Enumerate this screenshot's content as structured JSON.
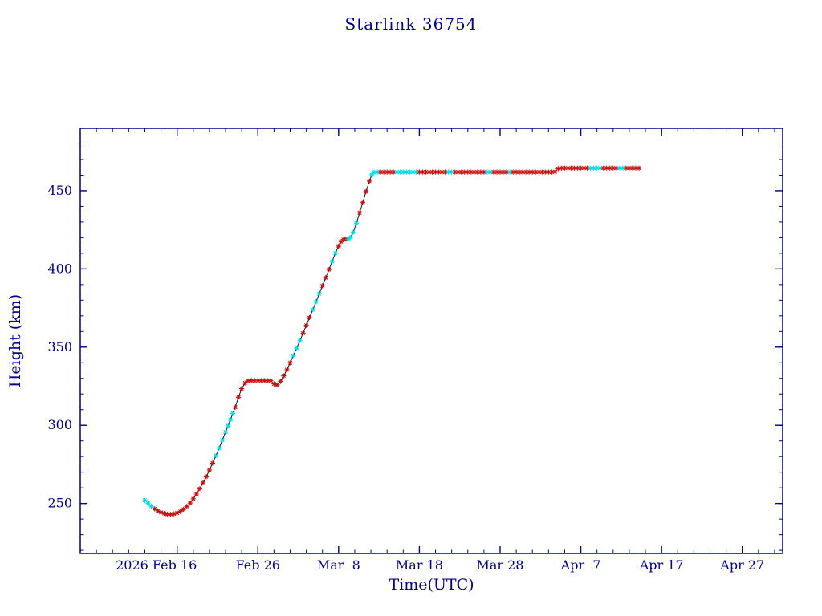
{
  "chart_data": {
    "type": "scatter",
    "title": "Starlink 36754",
    "xlabel": "Time(UTC)",
    "ylabel": "Height (km)",
    "x_axis_unit": "days since 2026 Feb 4",
    "x_domain": [
      0,
      87
    ],
    "y_domain": [
      218,
      490
    ],
    "x_ticks": [
      {
        "day": 12,
        "label": "2026 Feb 16",
        "dx": -26
      },
      {
        "day": 22,
        "label": "Feb 26",
        "dx": 0
      },
      {
        "day": 32,
        "label": "Mar  8",
        "dx": 0
      },
      {
        "day": 42,
        "label": "Mar 18",
        "dx": 0
      },
      {
        "day": 52,
        "label": "Mar 28",
        "dx": 0
      },
      {
        "day": 62,
        "label": "Apr  7",
        "dx": 0
      },
      {
        "day": 72,
        "label": "Apr 17",
        "dx": 0
      },
      {
        "day": 82,
        "label": "Apr 27",
        "dx": 0
      }
    ],
    "y_ticks": [
      250,
      300,
      350,
      400,
      450
    ],
    "x_minor_step": 2,
    "y_minor_step": 10,
    "grid": false,
    "legend": "none",
    "colors": {
      "axis": "#00008b",
      "line": "#10102a",
      "red_marker": "#cc1111",
      "cyan_marker": "#00dde8",
      "background": "#ffffff"
    },
    "points_format": [
      "day_offset",
      "height_km",
      "color_key r=red c=cyan"
    ],
    "points": [
      [
        8,
        252,
        "c"
      ],
      [
        8.4,
        250,
        "c"
      ],
      [
        8.8,
        248.2,
        "c"
      ],
      [
        9.2,
        246.6,
        "r"
      ],
      [
        9.6,
        245.3,
        "r"
      ],
      [
        10,
        244.3,
        "r"
      ],
      [
        10.4,
        243.6,
        "r"
      ],
      [
        10.8,
        243.1,
        "r"
      ],
      [
        11.2,
        243,
        "r"
      ],
      [
        11.6,
        243.3,
        "r"
      ],
      [
        12,
        243.9,
        "r"
      ],
      [
        12.4,
        244.9,
        "r"
      ],
      [
        12.8,
        246.3,
        "r"
      ],
      [
        13.2,
        248.1,
        "r"
      ],
      [
        13.6,
        250.3,
        "r"
      ],
      [
        14,
        253,
        "r"
      ],
      [
        14.4,
        256,
        "r"
      ],
      [
        14.8,
        259.4,
        "r"
      ],
      [
        15.2,
        263.1,
        "r"
      ],
      [
        15.6,
        267.1,
        "r"
      ],
      [
        16,
        271.3,
        "r"
      ],
      [
        16.4,
        275.8,
        "r"
      ],
      [
        16.8,
        280.5,
        "c"
      ],
      [
        17.2,
        285.4,
        "c"
      ],
      [
        17.6,
        290.5,
        "c"
      ],
      [
        18,
        295.7,
        "c"
      ],
      [
        18.3,
        299.6,
        "c"
      ],
      [
        18.6,
        303.6,
        "c"
      ],
      [
        18.9,
        307.6,
        "c"
      ],
      [
        19.2,
        311.6,
        "r"
      ],
      [
        19.6,
        317.9,
        "r"
      ],
      [
        20,
        323.4,
        "r"
      ],
      [
        20.4,
        327,
        "r"
      ],
      [
        20.8,
        328.4,
        "r"
      ],
      [
        21.2,
        328.6,
        "r"
      ],
      [
        21.6,
        328.6,
        "r"
      ],
      [
        22,
        328.6,
        "r"
      ],
      [
        22.4,
        328.6,
        "r"
      ],
      [
        22.8,
        328.6,
        "r"
      ],
      [
        23.2,
        328.6,
        "r"
      ],
      [
        23.6,
        328.5,
        "r"
      ],
      [
        24,
        326.5,
        "r"
      ],
      [
        24.4,
        325.8,
        "r"
      ],
      [
        24.8,
        328.1,
        "r"
      ],
      [
        25.2,
        331.6,
        "r"
      ],
      [
        25.6,
        335.6,
        "r"
      ],
      [
        26,
        340,
        "r"
      ],
      [
        26.4,
        344.6,
        "c"
      ],
      [
        26.8,
        349.3,
        "c"
      ],
      [
        27.2,
        354.1,
        "c"
      ],
      [
        27.6,
        359,
        "r"
      ],
      [
        28,
        363.9,
        "r"
      ],
      [
        28.4,
        368.9,
        "r"
      ],
      [
        28.8,
        373.9,
        "c"
      ],
      [
        29.2,
        379,
        "c"
      ],
      [
        29.6,
        384.1,
        "c"
      ],
      [
        30,
        389.2,
        "r"
      ],
      [
        30.4,
        394.4,
        "r"
      ],
      [
        30.8,
        399.6,
        "r"
      ],
      [
        31.2,
        404.8,
        "c"
      ],
      [
        31.6,
        410.1,
        "c"
      ],
      [
        32,
        414.6,
        "r"
      ],
      [
        32.3,
        417.5,
        "r"
      ],
      [
        32.6,
        418.8,
        "r"
      ],
      [
        32.9,
        419,
        "r"
      ],
      [
        33.2,
        419.1,
        "c"
      ],
      [
        33.5,
        420.3,
        "c"
      ],
      [
        33.8,
        423.4,
        "c"
      ],
      [
        34.2,
        429.3,
        "c"
      ],
      [
        34.6,
        435.9,
        "r"
      ],
      [
        35,
        442.7,
        "r"
      ],
      [
        35.4,
        449.5,
        "r"
      ],
      [
        35.8,
        456.2,
        "r"
      ],
      [
        36.1,
        460.2,
        "c"
      ],
      [
        36.4,
        461.8,
        "c"
      ],
      [
        36.8,
        462,
        "c"
      ],
      [
        37.2,
        462,
        "r"
      ],
      [
        37.6,
        462,
        "r"
      ],
      [
        38,
        462,
        "r"
      ],
      [
        38.4,
        462,
        "r"
      ],
      [
        38.8,
        462,
        "r"
      ],
      [
        39.2,
        462,
        "c"
      ],
      [
        39.6,
        462,
        "c"
      ],
      [
        40,
        462,
        "c"
      ],
      [
        40.4,
        462,
        "c"
      ],
      [
        40.8,
        462,
        "c"
      ],
      [
        41.2,
        462,
        "c"
      ],
      [
        41.6,
        462,
        "c"
      ],
      [
        42,
        462,
        "r"
      ],
      [
        42.4,
        462,
        "r"
      ],
      [
        42.8,
        462,
        "r"
      ],
      [
        43.2,
        462,
        "r"
      ],
      [
        43.6,
        462,
        "r"
      ],
      [
        44,
        462,
        "r"
      ],
      [
        44.4,
        462,
        "r"
      ],
      [
        44.8,
        462,
        "r"
      ],
      [
        45.2,
        462,
        "r"
      ],
      [
        45.6,
        462,
        "c"
      ],
      [
        46,
        462,
        "c"
      ],
      [
        46.4,
        462,
        "r"
      ],
      [
        46.8,
        462,
        "r"
      ],
      [
        47.2,
        462,
        "r"
      ],
      [
        47.6,
        462,
        "r"
      ],
      [
        48,
        462,
        "r"
      ],
      [
        48.4,
        462,
        "r"
      ],
      [
        48.8,
        462,
        "r"
      ],
      [
        49.2,
        462,
        "r"
      ],
      [
        49.6,
        462,
        "r"
      ],
      [
        50,
        462,
        "r"
      ],
      [
        50.4,
        462,
        "c"
      ],
      [
        50.8,
        462,
        "c"
      ],
      [
        51.2,
        462,
        "r"
      ],
      [
        51.6,
        462,
        "r"
      ],
      [
        52,
        462,
        "r"
      ],
      [
        52.4,
        462,
        "r"
      ],
      [
        52.8,
        462,
        "r"
      ],
      [
        53.2,
        462,
        "c"
      ],
      [
        53.6,
        462,
        "r"
      ],
      [
        54,
        462,
        "r"
      ],
      [
        54.4,
        462,
        "r"
      ],
      [
        54.8,
        462,
        "r"
      ],
      [
        55.2,
        462,
        "r"
      ],
      [
        55.6,
        462,
        "r"
      ],
      [
        56,
        462,
        "r"
      ],
      [
        56.4,
        462,
        "r"
      ],
      [
        56.8,
        462,
        "r"
      ],
      [
        57.2,
        462,
        "r"
      ],
      [
        57.6,
        462,
        "r"
      ],
      [
        58,
        462,
        "r"
      ],
      [
        58.4,
        462,
        "r"
      ],
      [
        58.8,
        462.2,
        "r"
      ],
      [
        59.2,
        464.2,
        "r"
      ],
      [
        59.6,
        464.5,
        "r"
      ],
      [
        60,
        464.5,
        "r"
      ],
      [
        60.4,
        464.5,
        "r"
      ],
      [
        60.8,
        464.5,
        "r"
      ],
      [
        61.2,
        464.5,
        "r"
      ],
      [
        61.6,
        464.5,
        "r"
      ],
      [
        62,
        464.5,
        "r"
      ],
      [
        62.4,
        464.5,
        "r"
      ],
      [
        62.8,
        464.5,
        "r"
      ],
      [
        63.2,
        464.5,
        "c"
      ],
      [
        63.6,
        464.5,
        "c"
      ],
      [
        64,
        464.5,
        "c"
      ],
      [
        64.4,
        464.5,
        "c"
      ],
      [
        64.8,
        464.5,
        "r"
      ],
      [
        65.2,
        464.5,
        "r"
      ],
      [
        65.6,
        464.5,
        "r"
      ],
      [
        66,
        464.5,
        "r"
      ],
      [
        66.4,
        464.5,
        "r"
      ],
      [
        66.8,
        464.5,
        "c"
      ],
      [
        67.2,
        464.5,
        "c"
      ],
      [
        67.6,
        464.5,
        "r"
      ],
      [
        68,
        464.5,
        "r"
      ],
      [
        68.4,
        464.5,
        "r"
      ],
      [
        68.8,
        464.5,
        "r"
      ],
      [
        69.2,
        464.5,
        "r"
      ]
    ]
  }
}
